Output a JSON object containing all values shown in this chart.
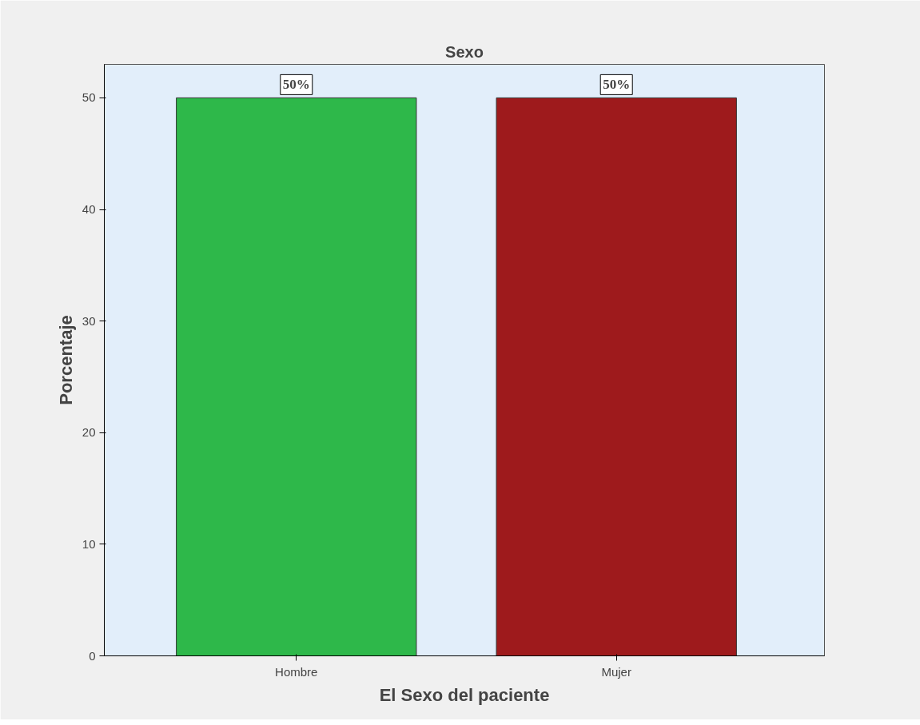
{
  "chart_data": {
    "type": "bar",
    "title": "Sexo",
    "xlabel": "El Sexo del paciente",
    "ylabel": "Porcentaje",
    "categories": [
      "Hombre",
      "Mujer"
    ],
    "values": [
      50,
      50
    ],
    "colors": [
      "#2eb84a",
      "#9e1a1c"
    ],
    "value_labels": [
      "50%",
      "50%"
    ],
    "ylim": [
      0,
      53
    ],
    "yticks": [
      0,
      10,
      20,
      30,
      40,
      50
    ],
    "grid": false
  }
}
